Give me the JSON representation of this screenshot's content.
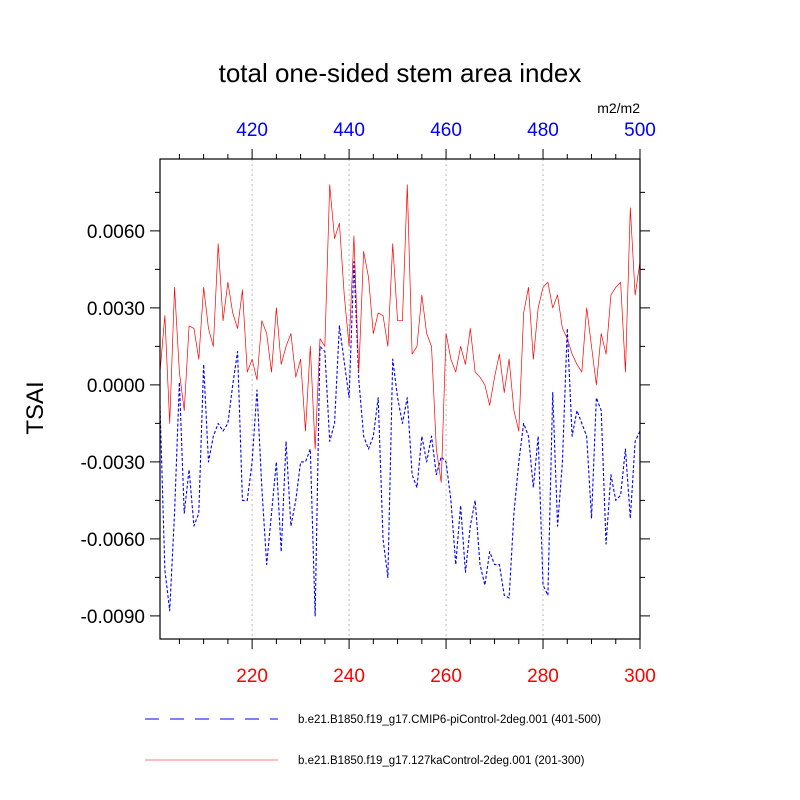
{
  "chart_data": {
    "type": "line",
    "title": "total one-sided stem area index",
    "units": "m2/m2",
    "ylabel": "TSAI",
    "ylim": [
      -0.0099,
      0.0088
    ],
    "yticks": [
      -0.009,
      -0.006,
      -0.003,
      0.0,
      0.003,
      0.006
    ],
    "ytick_labels": [
      "-0.0090",
      "-0.0060",
      "-0.0030",
      "0.0000",
      "0.0030",
      "0.0060"
    ],
    "bottom_axis": {
      "xlim": [
        201,
        300
      ],
      "ticks": [
        220,
        240,
        260,
        280,
        300
      ],
      "tick_labels": [
        "220",
        "240",
        "260",
        "280",
        "300"
      ],
      "color": "#ff0000"
    },
    "top_axis": {
      "xlim": [
        401,
        500
      ],
      "ticks": [
        420,
        440,
        460,
        480,
        500
      ],
      "tick_labels": [
        "420",
        "440",
        "460",
        "480",
        "500"
      ],
      "color": "#0000ff"
    },
    "grid": "vertical-dotted",
    "legend_placement": "bottom",
    "series": [
      {
        "name": "b.e21.B1850.f19_g17.CMIP6-piControl-2deg.001 (401-500)",
        "axis": "top",
        "color": "#0000ff",
        "style": "dashed",
        "x": [
          401,
          402,
          403,
          404,
          405,
          406,
          407,
          408,
          409,
          410,
          411,
          412,
          413,
          414,
          415,
          416,
          417,
          418,
          419,
          420,
          421,
          422,
          423,
          424,
          425,
          426,
          427,
          428,
          429,
          430,
          431,
          432,
          433,
          434,
          435,
          436,
          437,
          438,
          439,
          440,
          441,
          442,
          443,
          444,
          445,
          446,
          447,
          448,
          449,
          450,
          451,
          452,
          453,
          454,
          455,
          456,
          457,
          458,
          459,
          460,
          461,
          462,
          463,
          464,
          465,
          466,
          467,
          468,
          469,
          470,
          471,
          472,
          473,
          474,
          475,
          476,
          477,
          478,
          479,
          480,
          481,
          482,
          483,
          484,
          485,
          486,
          487,
          488,
          489,
          490,
          491,
          492,
          493,
          494,
          495,
          496,
          497,
          498,
          499,
          500
        ],
        "y": [
          -0.0008,
          -0.0072,
          -0.0088,
          -0.005,
          0.0001,
          -0.005,
          -0.0033,
          -0.0055,
          -0.005,
          0.0008,
          -0.003,
          -0.002,
          -0.0015,
          -0.0018,
          -0.0015,
          0.0,
          0.0013,
          -0.0045,
          -0.0045,
          -0.003,
          -0.0002,
          -0.004,
          -0.007,
          -0.005,
          -0.003,
          -0.0065,
          -0.0022,
          -0.0055,
          -0.0045,
          -0.003,
          -0.003,
          -0.0025,
          -0.009,
          0.0015,
          0.0013,
          -0.0022,
          -0.0015,
          0.0023,
          0.0009,
          -0.0005,
          0.0048,
          0.0002,
          -0.002,
          -0.0025,
          -0.002,
          -0.0005,
          -0.006,
          -0.0075,
          0.001,
          -0.0005,
          -0.0015,
          -0.0005,
          -0.0035,
          -0.004,
          -0.002,
          -0.003,
          -0.002,
          -0.0035,
          -0.0028,
          -0.003,
          -0.0045,
          -0.007,
          -0.0047,
          -0.0073,
          -0.0055,
          -0.0045,
          -0.007,
          -0.0078,
          -0.0065,
          -0.007,
          -0.007,
          -0.0082,
          -0.0083,
          -0.005,
          -0.003,
          -0.0015,
          -0.002,
          -0.004,
          -0.002,
          -0.0078,
          -0.0082,
          -0.0003,
          -0.0055,
          -0.003,
          0.0022,
          -0.002,
          -0.001,
          -0.0015,
          -0.002,
          -0.0052,
          -0.0005,
          -0.001,
          -0.0062,
          -0.0035,
          -0.0045,
          -0.0043,
          -0.0025,
          -0.0052,
          -0.0022,
          -0.0018
        ]
      },
      {
        "name": "b.e21.B1850.f19_g17.127kaControl-2deg.001 (201-300)",
        "axis": "bottom",
        "color": "#ff0000",
        "style": "solid",
        "x": [
          201,
          202,
          203,
          204,
          205,
          206,
          207,
          208,
          209,
          210,
          211,
          212,
          213,
          214,
          215,
          216,
          217,
          218,
          219,
          220,
          221,
          222,
          223,
          224,
          225,
          226,
          227,
          228,
          229,
          230,
          231,
          232,
          233,
          234,
          235,
          236,
          237,
          238,
          239,
          240,
          241,
          242,
          243,
          244,
          245,
          246,
          247,
          248,
          249,
          250,
          251,
          252,
          253,
          254,
          255,
          256,
          257,
          258,
          259,
          260,
          261,
          262,
          263,
          264,
          265,
          266,
          267,
          268,
          269,
          270,
          271,
          272,
          273,
          274,
          275,
          276,
          277,
          278,
          279,
          280,
          281,
          282,
          283,
          284,
          285,
          286,
          287,
          288,
          289,
          290,
          291,
          292,
          293,
          294,
          295,
          296,
          297,
          298,
          299,
          300
        ],
        "y": [
          0.0005,
          0.0027,
          -0.0015,
          0.0038,
          0.0005,
          -0.001,
          0.0023,
          0.0022,
          0.001,
          0.0038,
          0.0022,
          0.0015,
          0.0055,
          0.0025,
          0.004,
          0.0028,
          0.0022,
          0.0037,
          0.0005,
          0.001,
          0.0002,
          0.0025,
          0.002,
          0.0005,
          0.003,
          0.0008,
          0.0015,
          0.002,
          0.0003,
          0.001,
          -0.0018,
          0.0015,
          -0.0025,
          0.0018,
          0.0015,
          0.0078,
          0.0057,
          0.0063,
          0.0035,
          0.0015,
          0.0058,
          0.0005,
          0.0052,
          0.0042,
          0.002,
          0.0028,
          0.0027,
          0.0015,
          0.0055,
          0.0025,
          0.0025,
          0.0078,
          0.0012,
          0.0015,
          0.0035,
          0.002,
          0.0015,
          -0.0025,
          -0.0038,
          0.002,
          0.001,
          0.0005,
          0.0015,
          0.0008,
          0.0022,
          0.0005,
          0.0003,
          0.0,
          -0.0008,
          0.0003,
          0.0012,
          -0.0003,
          0.001,
          -0.001,
          -0.0018,
          0.0028,
          0.0038,
          0.001,
          0.003,
          0.0038,
          0.004,
          0.003,
          0.0035,
          0.0022,
          0.0018,
          0.0012,
          0.0008,
          0.0005,
          0.003,
          0.0015,
          0.0,
          0.002,
          0.0012,
          0.0035,
          0.0038,
          0.004,
          0.0005,
          0.0069,
          0.0035,
          0.0048
        ]
      }
    ]
  }
}
